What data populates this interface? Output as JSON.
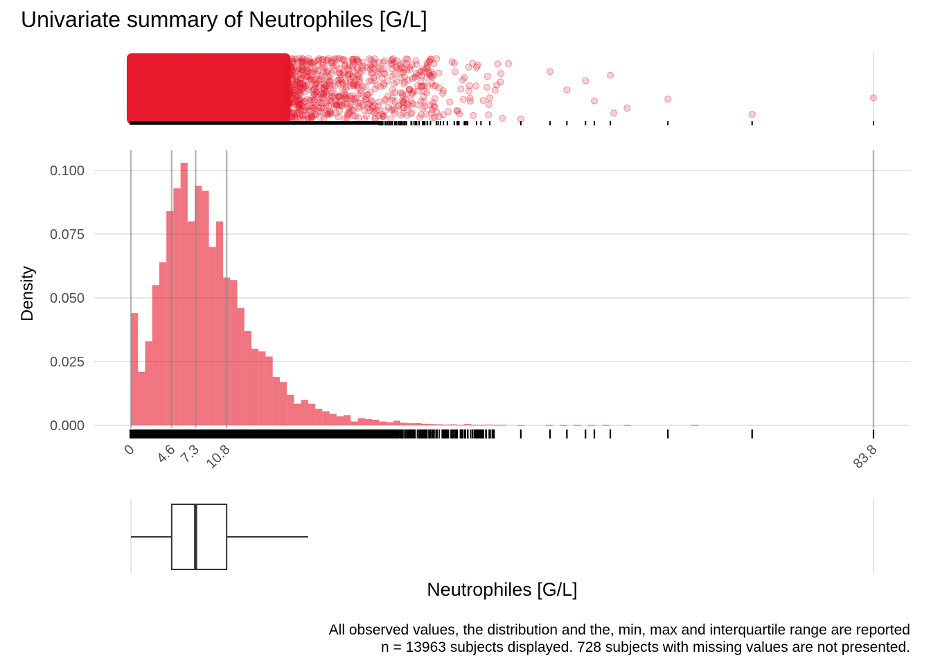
{
  "chart_data": {
    "type": "bar",
    "title": "Univariate summary of Neutrophiles [G/L]",
    "xlabel": "Neutrophiles [G/L]",
    "ylabel": "Density",
    "xlim": [
      0,
      83.8
    ],
    "ylim": [
      0,
      0.1
    ],
    "yticks": [
      0.0,
      0.025,
      0.05,
      0.075,
      0.1
    ],
    "ytick_labels": [
      "0.000",
      "0.025",
      "0.050",
      "0.075",
      "0.100"
    ],
    "xticks": [
      0,
      4.6,
      7.3,
      10.8,
      83.8
    ],
    "xtick_labels": [
      "0",
      "4.6",
      "7.3",
      "10.8",
      "83.8"
    ],
    "summary_lines": [
      0,
      4.6,
      7.3,
      10.8,
      83.8
    ],
    "bin_width": 0.8,
    "histogram": [
      {
        "x": 0.4,
        "y": 0.044
      },
      {
        "x": 1.2,
        "y": 0.021
      },
      {
        "x": 2.0,
        "y": 0.033
      },
      {
        "x": 2.8,
        "y": 0.055
      },
      {
        "x": 3.6,
        "y": 0.064
      },
      {
        "x": 4.4,
        "y": 0.084
      },
      {
        "x": 5.2,
        "y": 0.093
      },
      {
        "x": 6.0,
        "y": 0.103
      },
      {
        "x": 6.8,
        "y": 0.08
      },
      {
        "x": 7.6,
        "y": 0.094
      },
      {
        "x": 8.4,
        "y": 0.092
      },
      {
        "x": 9.2,
        "y": 0.07
      },
      {
        "x": 10.0,
        "y": 0.08
      },
      {
        "x": 10.8,
        "y": 0.058
      },
      {
        "x": 11.6,
        "y": 0.057
      },
      {
        "x": 12.4,
        "y": 0.046
      },
      {
        "x": 13.2,
        "y": 0.037
      },
      {
        "x": 14.0,
        "y": 0.03
      },
      {
        "x": 14.8,
        "y": 0.029
      },
      {
        "x": 15.6,
        "y": 0.027
      },
      {
        "x": 16.4,
        "y": 0.019
      },
      {
        "x": 17.2,
        "y": 0.017
      },
      {
        "x": 18.0,
        "y": 0.012
      },
      {
        "x": 18.8,
        "y": 0.0085
      },
      {
        "x": 19.6,
        "y": 0.01
      },
      {
        "x": 20.4,
        "y": 0.0085
      },
      {
        "x": 21.2,
        "y": 0.0065
      },
      {
        "x": 22.0,
        "y": 0.0055
      },
      {
        "x": 22.8,
        "y": 0.0045
      },
      {
        "x": 23.6,
        "y": 0.0035
      },
      {
        "x": 24.4,
        "y": 0.004
      },
      {
        "x": 25.2,
        "y": 0.0015
      },
      {
        "x": 26.0,
        "y": 0.0028
      },
      {
        "x": 26.8,
        "y": 0.0025
      },
      {
        "x": 27.6,
        "y": 0.0022
      },
      {
        "x": 28.4,
        "y": 0.0015
      },
      {
        "x": 29.2,
        "y": 0.0012
      },
      {
        "x": 30.0,
        "y": 0.0018
      },
      {
        "x": 30.8,
        "y": 0.001
      },
      {
        "x": 31.6,
        "y": 0.0008
      },
      {
        "x": 32.4,
        "y": 0.0009
      },
      {
        "x": 33.2,
        "y": 0.0006
      },
      {
        "x": 34.0,
        "y": 0.0005
      },
      {
        "x": 34.8,
        "y": 0.0004
      },
      {
        "x": 35.6,
        "y": 0.0003
      },
      {
        "x": 36.4,
        "y": 0.0004
      },
      {
        "x": 37.2,
        "y": 0.0002
      },
      {
        "x": 38.0,
        "y": 0.0005
      },
      {
        "x": 38.8,
        "y": 0.0002
      },
      {
        "x": 39.6,
        "y": 0.0002
      },
      {
        "x": 40.4,
        "y": 0.0003
      },
      {
        "x": 41.2,
        "y": 0.0002
      },
      {
        "x": 42.0,
        "y": 0.0002
      },
      {
        "x": 44.0,
        "y": 0.0001
      },
      {
        "x": 47.2,
        "y": 0.0001
      },
      {
        "x": 48.8,
        "y": 0.0001
      },
      {
        "x": 50.4,
        "y": 0.0001
      },
      {
        "x": 52.0,
        "y": 0.0001
      },
      {
        "x": 53.6,
        "y": 0.0001
      },
      {
        "x": 56.0,
        "y": 0.0001
      },
      {
        "x": 63.6,
        "y": 0.0001
      }
    ],
    "rug_sparse": [
      38.0,
      39.0,
      39.5,
      40.5,
      44.0,
      47.3,
      49.2,
      51.3,
      52.3,
      54.1,
      60.6,
      70.1,
      83.8
    ],
    "top_scatter_outliers": [
      {
        "x": 44.0,
        "y": 0.0
      },
      {
        "x": 47.3,
        "y": 0.78
      },
      {
        "x": 49.2,
        "y": 0.48
      },
      {
        "x": 51.3,
        "y": 0.63
      },
      {
        "x": 52.3,
        "y": 0.3
      },
      {
        "x": 54.1,
        "y": 0.72
      },
      {
        "x": 56.0,
        "y": 0.18
      },
      {
        "x": 54.5,
        "y": 0.1
      },
      {
        "x": 42.6,
        "y": 0.91
      },
      {
        "x": 60.6,
        "y": 0.33
      },
      {
        "x": 70.1,
        "y": 0.08
      },
      {
        "x": 83.8,
        "y": 0.35
      },
      {
        "x": 41.7,
        "y": 0.61
      },
      {
        "x": 40.5,
        "y": 0.35
      },
      {
        "x": 39.0,
        "y": 0.85
      }
    ],
    "boxplot": {
      "min": 0,
      "q1": 4.6,
      "median": 7.3,
      "q3": 10.8,
      "whisker_high": 20.0,
      "max": 83.8
    },
    "colors": {
      "fill": "#E8192C",
      "rug": "#000000",
      "summary_line": "#b0b0b0",
      "grid": "#e6e6e6"
    },
    "grid": true,
    "legend": "none"
  },
  "caption": {
    "line1": "All observed values, the distribution and the, min, max and interquartile range are reported",
    "line2": "n = 13963 subjects displayed. 728 subjects with missing values are not presented."
  }
}
